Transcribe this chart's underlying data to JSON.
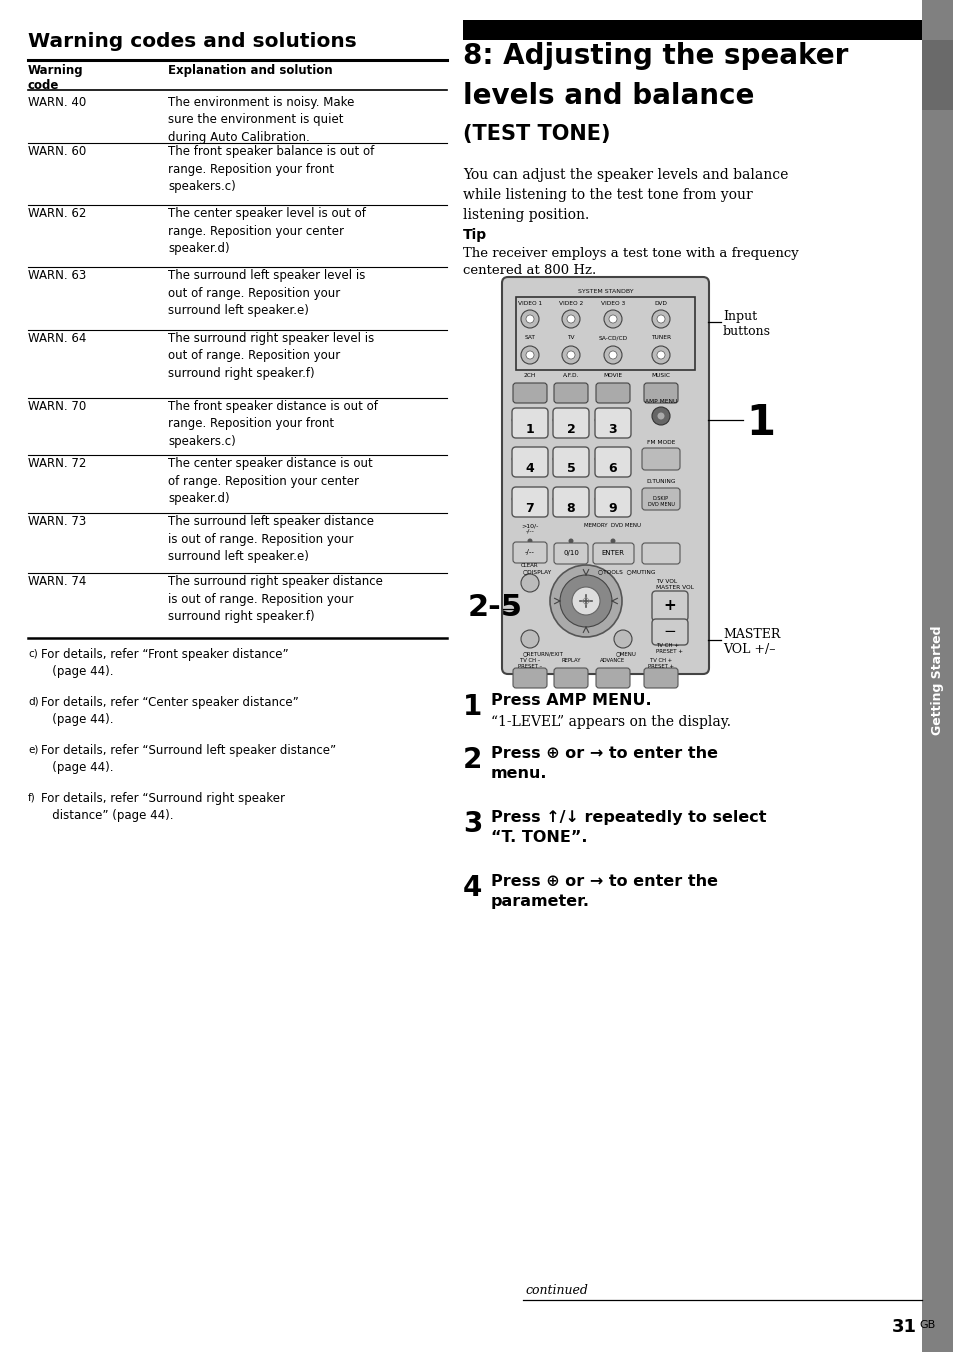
{
  "bg_color": "#ffffff",
  "left_section": {
    "title": "Warning codes and solutions",
    "col1_header": "Warning\ncode",
    "col2_header": "Explanation and solution",
    "rows": [
      {
        "code": "WARN. 40",
        "explanation": "The environment is noisy. Make\nsure the environment is quiet\nduring Auto Calibration."
      },
      {
        "code": "WARN. 60",
        "explanation": "The front speaker balance is out of\nrange. Reposition your front\nspeakers.c)"
      },
      {
        "code": "WARN. 62",
        "explanation": "The center speaker level is out of\nrange. Reposition your center\nspeaker.d)"
      },
      {
        "code": "WARN. 63",
        "explanation": "The surround left speaker level is\nout of range. Reposition your\nsurround left speaker.e)"
      },
      {
        "code": "WARN. 64",
        "explanation": "The surround right speaker level is\nout of range. Reposition your\nsurround right speaker.f)"
      },
      {
        "code": "WARN. 70",
        "explanation": "The front speaker distance is out of\nrange. Reposition your front\nspeakers.c)"
      },
      {
        "code": "WARN. 72",
        "explanation": "The center speaker distance is out\nof range. Reposition your center\nspeaker.d)"
      },
      {
        "code": "WARN. 73",
        "explanation": "The surround left speaker distance\nis out of range. Reposition your\nsurround left speaker.e)"
      },
      {
        "code": "WARN. 74",
        "explanation": "The surround right speaker distance\nis out of range. Reposition your\nsurround right speaker.f)"
      }
    ],
    "footnotes": [
      {
        "sup": "c)",
        "text": "For details, refer “Front speaker distance”\n   (page 44)."
      },
      {
        "sup": "d)",
        "text": "For details, refer “Center speaker distance”\n   (page 44)."
      },
      {
        "sup": "e)",
        "text": "For details, refer “Surround left speaker distance”\n   (page 44)."
      },
      {
        "sup": "f)",
        "text": "For details, refer “Surround right speaker\n   distance” (page 44)."
      }
    ]
  },
  "right_section": {
    "title_line1": "8: Adjusting the speaker",
    "title_line2": "levels and balance",
    "subtitle": "(TEST TONE)",
    "body_text": "You can adjust the speaker levels and balance\nwhile listening to the test tone from your\nlistening position.",
    "tip_title": "Tip",
    "tip_body": "The receiver employs a test tone with a frequency\ncentered at 800 Hz.",
    "input_buttons_label": "Input\nbuttons",
    "label_1": "1",
    "label_25": "2-5",
    "master_vol_label": "MASTER\nVOL +/–",
    "steps": [
      {
        "num": "1",
        "bold": "Press AMP MENU.",
        "normal": "“1-LEVEL” appears on the display."
      },
      {
        "num": "2",
        "bold": "Press ⊕ or → to enter the\nmenu.",
        "normal": null
      },
      {
        "num": "3",
        "bold": "Press ↑/↓ repeatedly to select\n“T. TONE”.",
        "normal": null
      },
      {
        "num": "4",
        "bold": "Press ⊕ or → to enter the\nparameter.",
        "normal": null
      }
    ],
    "continued_text": "continued",
    "page_num": "31",
    "page_suffix": "GB"
  },
  "sidebar_text": "Getting Started",
  "sidebar_color": "#808080"
}
